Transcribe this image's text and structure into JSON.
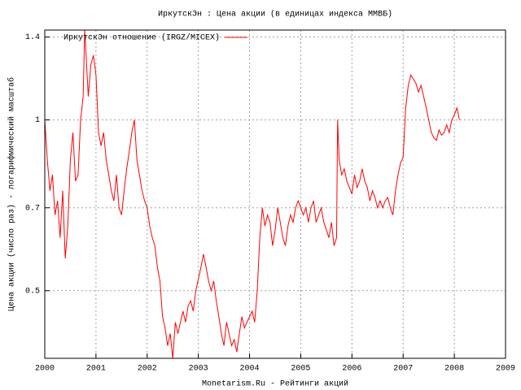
{
  "chart_data": {
    "type": "line",
    "title": "ИркутскЭн : Цена акции (в единицах индекса ММВБ)",
    "xlabel": "Monetarism.Ru - Рейтинги акций",
    "ylabel": "Цена акции (число раз) - логарифмический масштаб",
    "xlim": [
      2000,
      2009
    ],
    "xticks": [
      2000,
      2001,
      2002,
      2003,
      2004,
      2005,
      2006,
      2007,
      2008,
      2009
    ],
    "ylim": [
      0.38,
      1.44
    ],
    "yticks": [
      0.5,
      0.7,
      1,
      1.4
    ],
    "ylog": true,
    "grid": true,
    "legend": "top-left",
    "series": [
      {
        "name": "ИркутскЭн отношение (IRGZ/MICEX)",
        "color": "#ff0000",
        "x": [
          2000.0,
          2000.05,
          2000.1,
          2000.15,
          2000.2,
          2000.25,
          2000.3,
          2000.35,
          2000.4,
          2000.45,
          2000.5,
          2000.55,
          2000.6,
          2000.65,
          2000.7,
          2000.75,
          2000.78,
          2000.85,
          2000.9,
          2000.95,
          2001.0,
          2001.05,
          2001.1,
          2001.15,
          2001.2,
          2001.25,
          2001.3,
          2001.35,
          2001.4,
          2001.45,
          2001.5,
          2001.55,
          2001.6,
          2001.65,
          2001.7,
          2001.75,
          2001.8,
          2001.85,
          2001.9,
          2001.95,
          2002.0,
          2002.05,
          2002.1,
          2002.15,
          2002.2,
          2002.25,
          2002.3,
          2002.35,
          2002.4,
          2002.45,
          2002.5,
          2002.55,
          2002.6,
          2002.65,
          2002.7,
          2002.75,
          2002.8,
          2002.85,
          2002.9,
          2002.95,
          2003.05,
          2003.1,
          2003.15,
          2003.2,
          2003.25,
          2003.3,
          2003.35,
          2003.4,
          2003.45,
          2003.5,
          2003.55,
          2003.6,
          2003.65,
          2003.7,
          2003.75,
          2003.8,
          2003.85,
          2003.9,
          2003.95,
          2004.0,
          2004.05,
          2004.1,
          2004.15,
          2004.2,
          2004.25,
          2004.3,
          2004.35,
          2004.4,
          2004.45,
          2004.5,
          2004.55,
          2004.6,
          2004.65,
          2004.7,
          2004.75,
          2004.8,
          2004.85,
          2004.9,
          2004.95,
          2005.0,
          2005.05,
          2005.1,
          2005.15,
          2005.2,
          2005.25,
          2005.3,
          2005.35,
          2005.4,
          2005.45,
          2005.5,
          2005.55,
          2005.6,
          2005.65,
          2005.7,
          2005.72,
          2005.75,
          2005.8,
          2005.85,
          2005.9,
          2005.95,
          2006.0,
          2006.05,
          2006.1,
          2006.15,
          2006.2,
          2006.25,
          2006.3,
          2006.35,
          2006.4,
          2006.45,
          2006.5,
          2006.55,
          2006.6,
          2006.65,
          2006.7,
          2006.75,
          2006.8,
          2006.85,
          2006.9,
          2006.95,
          2007.0,
          2007.05,
          2007.1,
          2007.15,
          2007.2,
          2007.25,
          2007.3,
          2007.35,
          2007.4,
          2007.45,
          2007.5,
          2007.55,
          2007.6,
          2007.65,
          2007.7,
          2007.75,
          2007.8,
          2007.85,
          2007.9,
          2007.95,
          2008.0,
          2008.05,
          2008.1
        ],
        "values": [
          1.0,
          0.85,
          0.75,
          0.8,
          0.68,
          0.72,
          0.62,
          0.75,
          0.57,
          0.65,
          0.85,
          0.95,
          0.78,
          0.8,
          1.0,
          1.1,
          1.44,
          1.1,
          1.25,
          1.3,
          1.2,
          0.95,
          0.9,
          0.95,
          0.85,
          0.8,
          0.75,
          0.72,
          0.8,
          0.7,
          0.68,
          0.75,
          0.82,
          0.88,
          0.95,
          1.0,
          0.85,
          0.8,
          0.75,
          0.72,
          0.7,
          0.65,
          0.62,
          0.6,
          0.55,
          0.52,
          0.45,
          0.43,
          0.4,
          0.42,
          0.38,
          0.44,
          0.42,
          0.44,
          0.46,
          0.44,
          0.47,
          0.48,
          0.46,
          0.5,
          0.55,
          0.58,
          0.55,
          0.52,
          0.5,
          0.52,
          0.48,
          0.45,
          0.42,
          0.4,
          0.44,
          0.42,
          0.4,
          0.41,
          0.39,
          0.42,
          0.45,
          0.43,
          0.44,
          0.45,
          0.46,
          0.44,
          0.5,
          0.62,
          0.7,
          0.65,
          0.68,
          0.66,
          0.6,
          0.64,
          0.7,
          0.66,
          0.62,
          0.6,
          0.65,
          0.68,
          0.66,
          0.7,
          0.72,
          0.7,
          0.68,
          0.7,
          0.66,
          0.7,
          0.72,
          0.66,
          0.68,
          0.7,
          0.66,
          0.64,
          0.62,
          0.66,
          0.6,
          0.62,
          1.0,
          0.85,
          0.8,
          0.82,
          0.78,
          0.76,
          0.74,
          0.8,
          0.76,
          0.78,
          0.82,
          0.78,
          0.76,
          0.72,
          0.75,
          0.73,
          0.7,
          0.72,
          0.7,
          0.72,
          0.73,
          0.7,
          0.68,
          0.75,
          0.8,
          0.84,
          0.86,
          1.05,
          1.15,
          1.2,
          1.18,
          1.16,
          1.12,
          1.15,
          1.1,
          1.05,
          1.0,
          0.95,
          0.93,
          0.92,
          0.96,
          0.94,
          0.95,
          0.98,
          0.95,
          1.0,
          1.02,
          1.05,
          1.0
        ]
      }
    ]
  }
}
